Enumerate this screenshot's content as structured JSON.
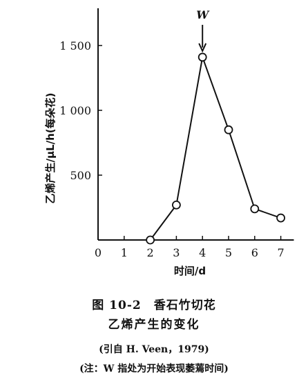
{
  "chart_data": {
    "type": "line",
    "x": [
      2,
      3,
      4,
      5,
      6,
      7
    ],
    "series": [
      {
        "values": [
          0,
          270,
          1410,
          850,
          240,
          170
        ]
      }
    ],
    "xlabel": "时间/d",
    "ylabel": "乙烯产生/μL/h(每朵花)",
    "xticks": [
      "0",
      "1",
      "2",
      "3",
      "4",
      "5",
      "6",
      "7"
    ],
    "yticks": [
      "500",
      "1 000",
      "1 500"
    ],
    "xlim": [
      0,
      7.5
    ],
    "ylim": [
      -30,
      1800
    ],
    "grid": false,
    "annotation": {
      "text": "W",
      "x": 4,
      "arrow": "down"
    }
  },
  "caption": {
    "line1": "图 10-2　香石竹切花",
    "line2": "乙烯产生的变化",
    "line3": "(引自 H. Veen，1979)",
    "line4": "(注：W 指处为开始表现萎蔫时间)"
  }
}
